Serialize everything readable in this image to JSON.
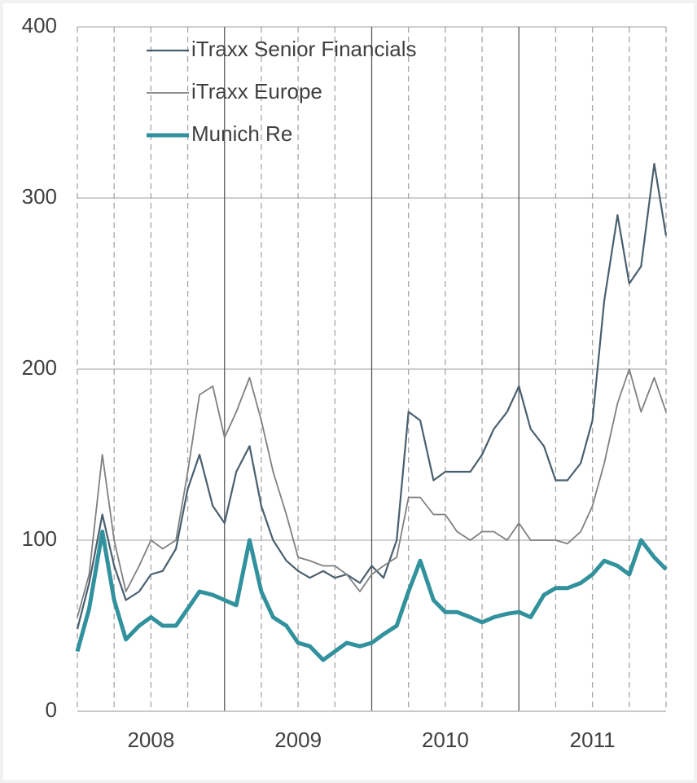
{
  "chart_data": {
    "type": "line",
    "x": [
      2008,
      2008.08,
      2008.17,
      2008.25,
      2008.33,
      2008.42,
      2008.5,
      2008.58,
      2008.67,
      2008.75,
      2008.83,
      2008.92,
      2009,
      2009.08,
      2009.17,
      2009.25,
      2009.33,
      2009.42,
      2009.5,
      2009.58,
      2009.67,
      2009.75,
      2009.83,
      2009.92,
      2010,
      2010.08,
      2010.17,
      2010.25,
      2010.33,
      2010.42,
      2010.5,
      2010.58,
      2010.67,
      2010.75,
      2010.83,
      2010.92,
      2011,
      2011.08,
      2011.17,
      2011.25,
      2011.33,
      2011.42,
      2011.5,
      2011.58,
      2011.67,
      2011.75,
      2011.83,
      2011.92,
      2012
    ],
    "series": [
      {
        "name": "iTraxx Senior Financials",
        "color": "#4a5f6e",
        "width": 2.2,
        "values": [
          48,
          75,
          115,
          85,
          65,
          70,
          80,
          82,
          95,
          130,
          150,
          120,
          110,
          140,
          155,
          120,
          100,
          88,
          82,
          78,
          82,
          78,
          80,
          75,
          85,
          78,
          100,
          175,
          170,
          135,
          140,
          140,
          140,
          150,
          165,
          175,
          190,
          165,
          155,
          135,
          135,
          145,
          170,
          240,
          290,
          250,
          260,
          320,
          278
        ]
      },
      {
        "name": "iTraxx Europe",
        "color": "#808080",
        "width": 1.8,
        "values": [
          55,
          80,
          150,
          100,
          70,
          85,
          100,
          95,
          100,
          140,
          185,
          190,
          160,
          175,
          195,
          170,
          140,
          115,
          90,
          88,
          85,
          85,
          80,
          70,
          80,
          85,
          90,
          125,
          125,
          115,
          115,
          105,
          100,
          105,
          105,
          100,
          110,
          100,
          100,
          100,
          98,
          105,
          120,
          145,
          180,
          200,
          175,
          195,
          175
        ]
      },
      {
        "name": "Munich Re",
        "color": "#31919d",
        "width": 5,
        "values": [
          35,
          60,
          105,
          65,
          42,
          50,
          55,
          50,
          50,
          60,
          70,
          68,
          65,
          62,
          100,
          70,
          55,
          50,
          40,
          38,
          30,
          35,
          40,
          38,
          40,
          45,
          50,
          70,
          88,
          65,
          58,
          58,
          55,
          52,
          55,
          57,
          58,
          55,
          68,
          72,
          72,
          75,
          80,
          88,
          85,
          80,
          100,
          90,
          83
        ]
      }
    ],
    "xlim": [
      2008,
      2012
    ],
    "xticks": [
      {
        "value": 2008.5,
        "label": "2008"
      },
      {
        "value": 2009.5,
        "label": "2009"
      },
      {
        "value": 2010.5,
        "label": "2010"
      },
      {
        "value": 2011.5,
        "label": "2011"
      }
    ],
    "xminor": [
      2008,
      2008.25,
      2008.5,
      2008.75,
      2009.25,
      2009.5,
      2009.75,
      2010.25,
      2010.5,
      2010.75,
      2011.25,
      2011.5,
      2011.75,
      2012
    ],
    "xmajor": [
      2009,
      2010,
      2011
    ],
    "ylim": [
      0,
      400
    ],
    "yticks": [
      0,
      100,
      200,
      300,
      400
    ],
    "grid": true,
    "legend": "upper left"
  }
}
